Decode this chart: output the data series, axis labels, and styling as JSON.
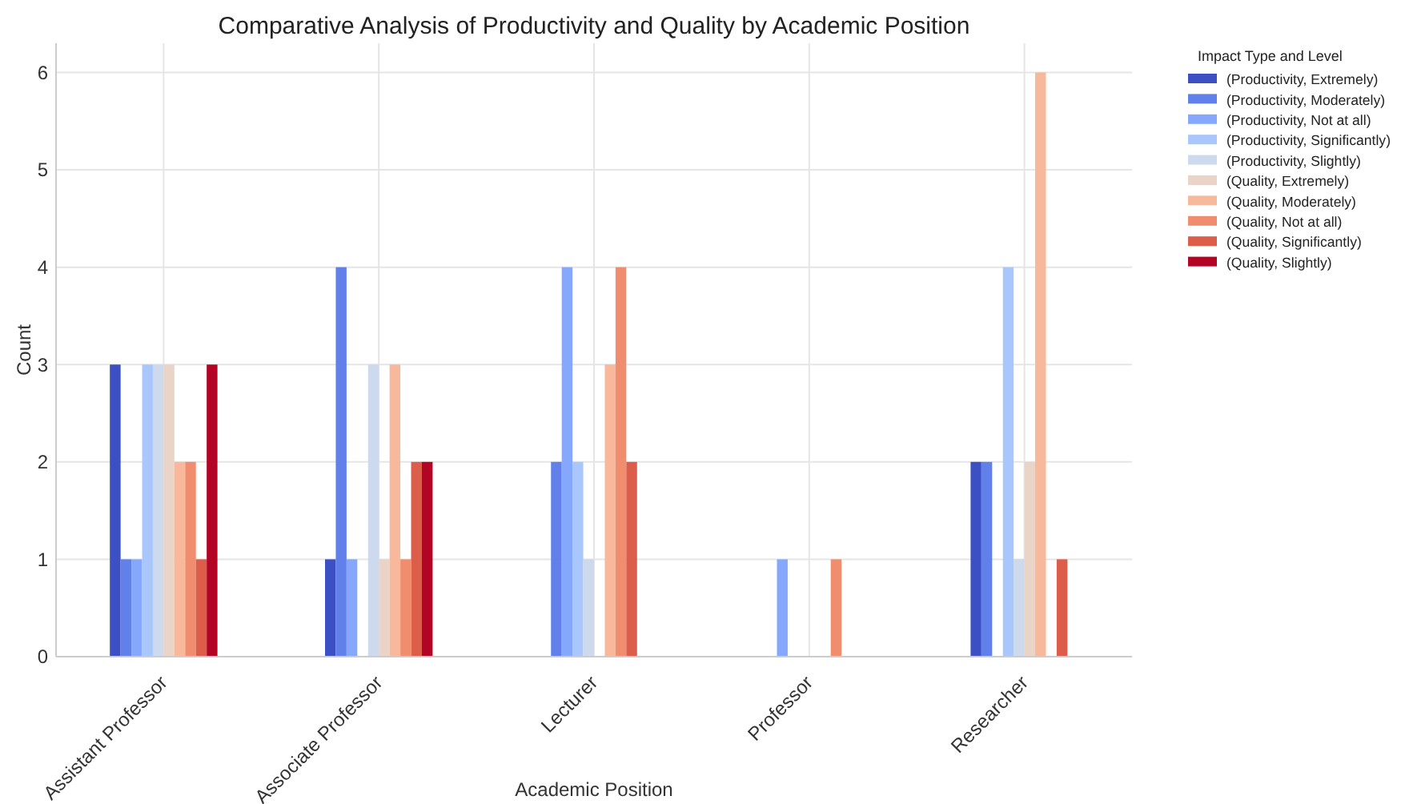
{
  "chart_data": {
    "type": "bar",
    "title": "Comparative Analysis of Productivity and Quality by Academic Position",
    "xlabel": "Academic Position",
    "ylabel": "Count",
    "legend_title": "Impact Type and Level",
    "categories": [
      "Assistant Professor",
      "Associate Professor",
      "Lecturer",
      "Professor",
      "Researcher"
    ],
    "series": [
      {
        "name": "(Productivity, Extremely)",
        "color": "#3d50c3",
        "values": [
          3,
          1,
          0,
          0,
          2
        ]
      },
      {
        "name": "(Productivity, Moderately)",
        "color": "#6180e9",
        "values": [
          1,
          4,
          2,
          0,
          2
        ]
      },
      {
        "name": "(Productivity, Not at all)",
        "color": "#85a8fc",
        "values": [
          1,
          1,
          4,
          1,
          0
        ]
      },
      {
        "name": "(Productivity, Significantly)",
        "color": "#aac7fd",
        "values": [
          3,
          0,
          2,
          0,
          4
        ]
      },
      {
        "name": "(Productivity, Slightly)",
        "color": "#cdd9ec",
        "values": [
          3,
          3,
          1,
          0,
          1
        ]
      },
      {
        "name": "(Quality, Extremely)",
        "color": "#ead4c8",
        "values": [
          3,
          1,
          0,
          0,
          2
        ]
      },
      {
        "name": "(Quality, Moderately)",
        "color": "#f7b89c",
        "values": [
          2,
          3,
          3,
          0,
          6
        ]
      },
      {
        "name": "(Quality, Not at all)",
        "color": "#f18d6f",
        "values": [
          2,
          1,
          4,
          1,
          0
        ]
      },
      {
        "name": "(Quality, Significantly)",
        "color": "#dc5d4a",
        "values": [
          1,
          2,
          2,
          0,
          1
        ]
      },
      {
        "name": "(Quality, Slightly)",
        "color": "#b40426",
        "values": [
          3,
          2,
          0,
          0,
          0
        ]
      }
    ],
    "ylim": [
      0,
      6.3
    ],
    "yticks": [
      0,
      1,
      2,
      3,
      4,
      5,
      6
    ],
    "grid": true,
    "legend": "top right"
  }
}
